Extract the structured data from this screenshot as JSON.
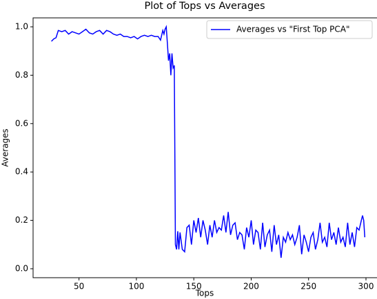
{
  "chart_data": {
    "type": "line",
    "title": "Plot of Tops vs Averages",
    "xlabel": "Tops",
    "ylabel": "Averages",
    "x": [
      26,
      28,
      30,
      32,
      35,
      38,
      41,
      44,
      47,
      50,
      53,
      56,
      59,
      62,
      65,
      68,
      71,
      74,
      77,
      80,
      83,
      86,
      89,
      92,
      95,
      98,
      101,
      104,
      107,
      110,
      113,
      116,
      119,
      121,
      123,
      124,
      125,
      126,
      127,
      128,
      129,
      130,
      131,
      132,
      133,
      134,
      135,
      136,
      137,
      138,
      140,
      142,
      144,
      146,
      148,
      150,
      152,
      154,
      156,
      158,
      160,
      162,
      164,
      166,
      168,
      170,
      172,
      174,
      176,
      178,
      180,
      182,
      184,
      186,
      188,
      190,
      192,
      194,
      196,
      198,
      200,
      202,
      204,
      206,
      208,
      210,
      212,
      214,
      216,
      218,
      220,
      222,
      224,
      226,
      228,
      230,
      232,
      234,
      236,
      238,
      240,
      242,
      244,
      246,
      248,
      250,
      252,
      254,
      256,
      258,
      260,
      262,
      264,
      266,
      268,
      270,
      272,
      274,
      276,
      278,
      280,
      282,
      284,
      286,
      288,
      290,
      292,
      294,
      296,
      297,
      298,
      299
    ],
    "series": [
      {
        "name": "Averages vs \"First Top PCA\"",
        "color": "#0000ff",
        "values": [
          0.94,
          0.95,
          0.955,
          0.985,
          0.98,
          0.985,
          0.97,
          0.98,
          0.975,
          0.97,
          0.98,
          0.99,
          0.975,
          0.97,
          0.98,
          0.985,
          0.97,
          0.985,
          0.98,
          0.97,
          0.965,
          0.97,
          0.96,
          0.96,
          0.955,
          0.96,
          0.95,
          0.96,
          0.965,
          0.96,
          0.965,
          0.96,
          0.96,
          0.945,
          0.985,
          0.97,
          0.99,
          1.0,
          0.93,
          0.86,
          0.89,
          0.8,
          0.89,
          0.83,
          0.84,
          0.1,
          0.08,
          0.155,
          0.08,
          0.15,
          0.08,
          0.07,
          0.17,
          0.18,
          0.1,
          0.2,
          0.15,
          0.21,
          0.13,
          0.2,
          0.16,
          0.1,
          0.18,
          0.13,
          0.2,
          0.15,
          0.17,
          0.16,
          0.22,
          0.15,
          0.235,
          0.14,
          0.18,
          0.19,
          0.12,
          0.15,
          0.14,
          0.08,
          0.17,
          0.13,
          0.2,
          0.1,
          0.16,
          0.15,
          0.08,
          0.19,
          0.09,
          0.14,
          0.16,
          0.07,
          0.18,
          0.1,
          0.14,
          0.045,
          0.13,
          0.11,
          0.15,
          0.12,
          0.14,
          0.1,
          0.13,
          0.18,
          0.06,
          0.14,
          0.11,
          0.07,
          0.13,
          0.15,
          0.08,
          0.12,
          0.19,
          0.11,
          0.13,
          0.09,
          0.19,
          0.12,
          0.15,
          0.1,
          0.17,
          0.11,
          0.13,
          0.09,
          0.19,
          0.1,
          0.15,
          0.09,
          0.17,
          0.16,
          0.2,
          0.22,
          0.2,
          0.13
        ]
      }
    ],
    "xlim": [
      10,
      309
    ],
    "ylim": [
      -0.037,
      1.037
    ],
    "xticks": [
      50,
      100,
      150,
      200,
      250,
      300
    ],
    "yticks": [
      {
        "value": 0,
        "label": "0.0"
      },
      0.2,
      0.4,
      0.6,
      0.8,
      {
        "value": 1,
        "label": "1.0"
      }
    ],
    "legend": "upper right"
  }
}
